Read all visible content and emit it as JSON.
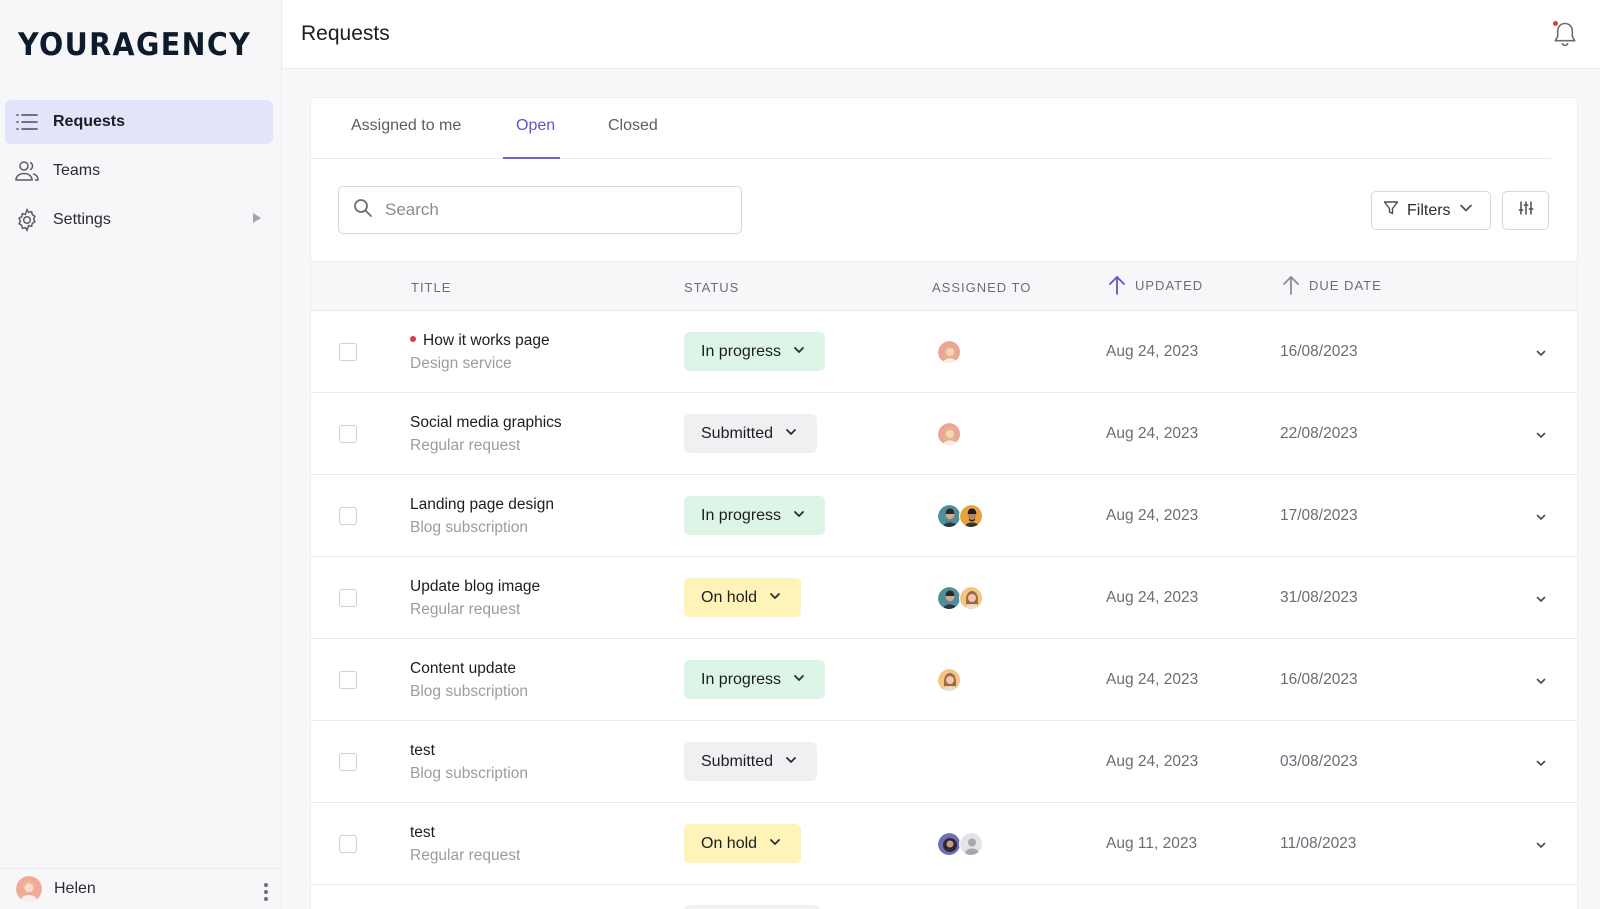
{
  "sidebar": {
    "logo": "YOURAGENCY",
    "items": [
      {
        "label": "Requests",
        "icon": "list-icon",
        "active": true
      },
      {
        "label": "Teams",
        "icon": "users-icon"
      },
      {
        "label": "Settings",
        "icon": "gear-icon"
      }
    ],
    "user": {
      "name": "Helen"
    }
  },
  "header": {
    "title": "Requests"
  },
  "tabs": [
    {
      "label": "Assigned to me"
    },
    {
      "label": "Open",
      "active": true
    },
    {
      "label": "Closed"
    }
  ],
  "toolbar": {
    "search_placeholder": "Search",
    "filters_label": "Filters"
  },
  "table": {
    "headers": {
      "title": "TITLE",
      "status": "STATUS",
      "assigned": "ASSIGNED TO",
      "updated": "UPDATED",
      "due": "DUE DATE"
    },
    "rows": [
      {
        "title": "How it works page",
        "unread": true,
        "subtitle": "Design service",
        "status": "In progress",
        "assignees": [
          "woman-light"
        ],
        "updated": "Aug 24, 2023",
        "due": "16/08/2023"
      },
      {
        "title": "Social media graphics",
        "subtitle": "Regular request",
        "status": "Submitted",
        "assignees": [
          "woman-light"
        ],
        "updated": "Aug 24, 2023",
        "due": "22/08/2023"
      },
      {
        "title": "Landing page design",
        "subtitle": "Blog subscription",
        "status": "In progress",
        "assignees": [
          "man-teal",
          "man-orange"
        ],
        "updated": "Aug 24, 2023",
        "due": "17/08/2023"
      },
      {
        "title": "Update blog image",
        "subtitle": "Regular request",
        "status": "On hold",
        "assignees": [
          "man-teal",
          "woman-warm"
        ],
        "updated": "Aug 24, 2023",
        "due": "31/08/2023"
      },
      {
        "title": "Content update",
        "subtitle": "Blog subscription",
        "status": "In progress",
        "assignees": [
          "woman-warm"
        ],
        "updated": "Aug 24, 2023",
        "due": "16/08/2023"
      },
      {
        "title": "test",
        "subtitle": "Blog subscription",
        "status": "Submitted",
        "assignees": [],
        "updated": "Aug 24, 2023",
        "due": "03/08/2023"
      },
      {
        "title": "test",
        "subtitle": "Regular request",
        "status": "On hold",
        "assignees": [
          "person-dark",
          "person-placeholder"
        ],
        "updated": "Aug 11, 2023",
        "due": "11/08/2023"
      }
    ]
  },
  "colors": {
    "accent": "#6a66d3",
    "in_progress_bg": "#dcf5e7",
    "submitted_bg": "#f0f0f2",
    "on_hold_bg": "#fff3b8",
    "unread_dot": "#e23a3a"
  }
}
